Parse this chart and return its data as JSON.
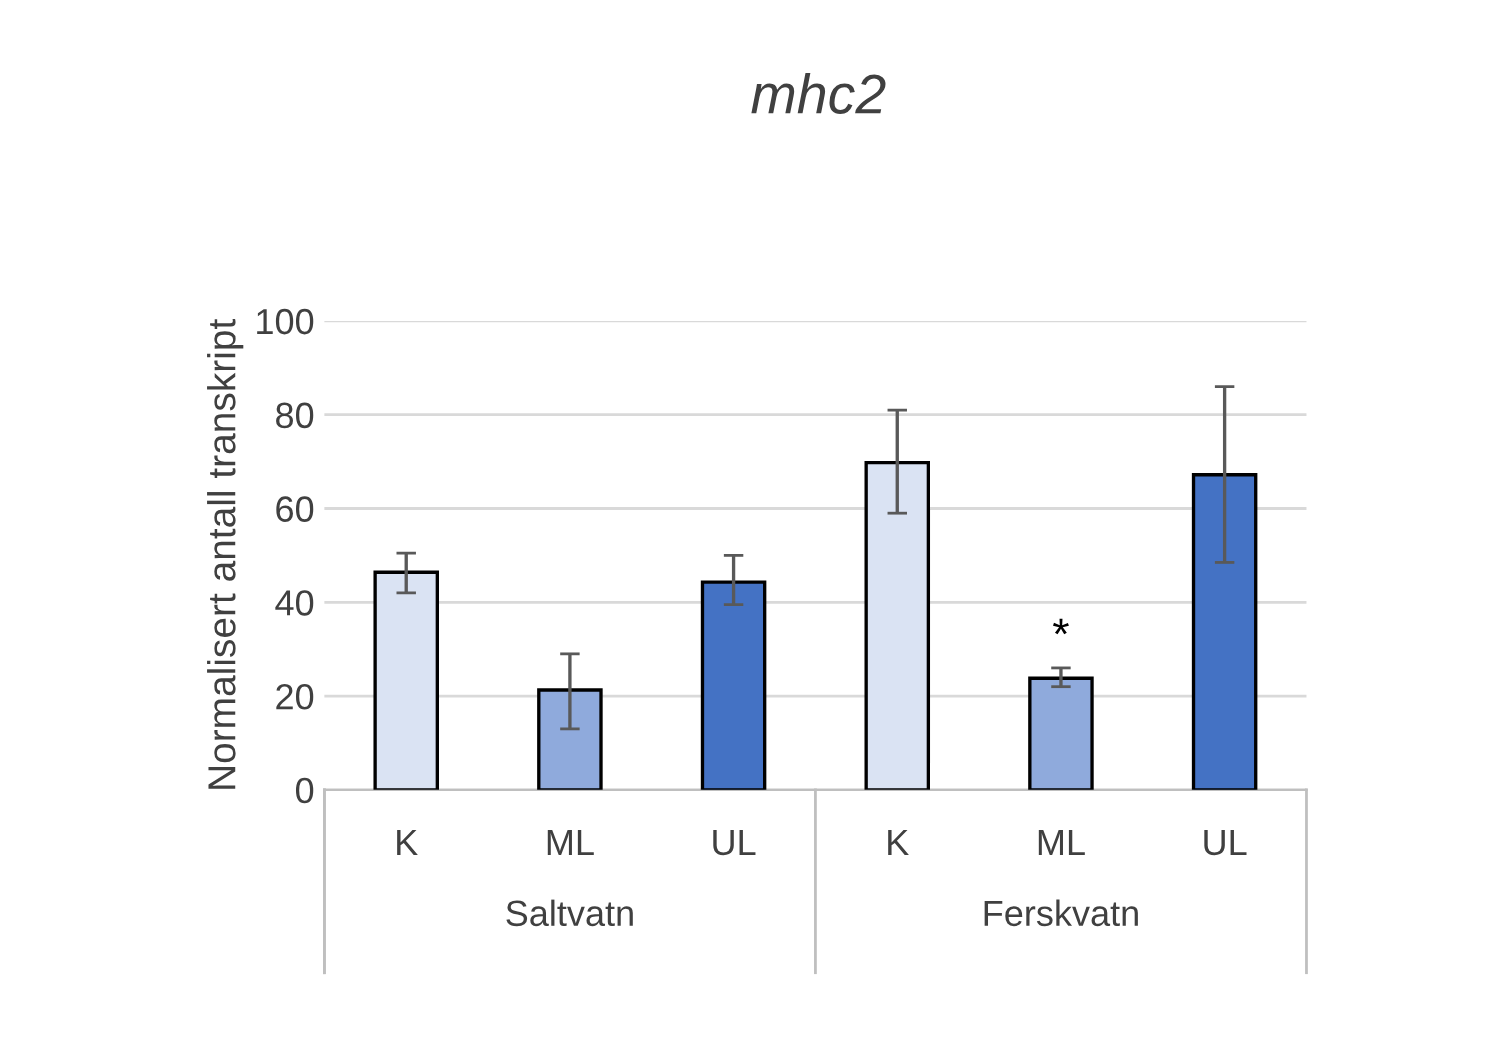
{
  "chart_data": {
    "type": "bar",
    "title": "mhc2",
    "ylabel": "Normalisert antall transkript",
    "categories": [
      "K",
      "ML",
      "UL",
      "K",
      "ML",
      "UL"
    ],
    "values": [
      46.4,
      21.3,
      44.3,
      69.8,
      23.8,
      67.2
    ],
    "colors": [
      "#dae3f3",
      "#8faadc",
      "#4472c4",
      "#dae3f3",
      "#8faadc",
      "#4472c4"
    ],
    "errors": [
      [
        42,
        50.5
      ],
      [
        13,
        29
      ],
      [
        39.5,
        50
      ],
      [
        59,
        81
      ],
      [
        22,
        26
      ],
      [
        48.5,
        86
      ]
    ],
    "value_labels": [
      null,
      null,
      null,
      null,
      "*",
      null
    ],
    "annotations": [
      "Saltvatn",
      "Ferskvatn"
    ],
    "ylim": [
      0,
      100
    ],
    "yticks": [
      0,
      20,
      40,
      60,
      80,
      100
    ],
    "grid": "y",
    "legend": false
  }
}
